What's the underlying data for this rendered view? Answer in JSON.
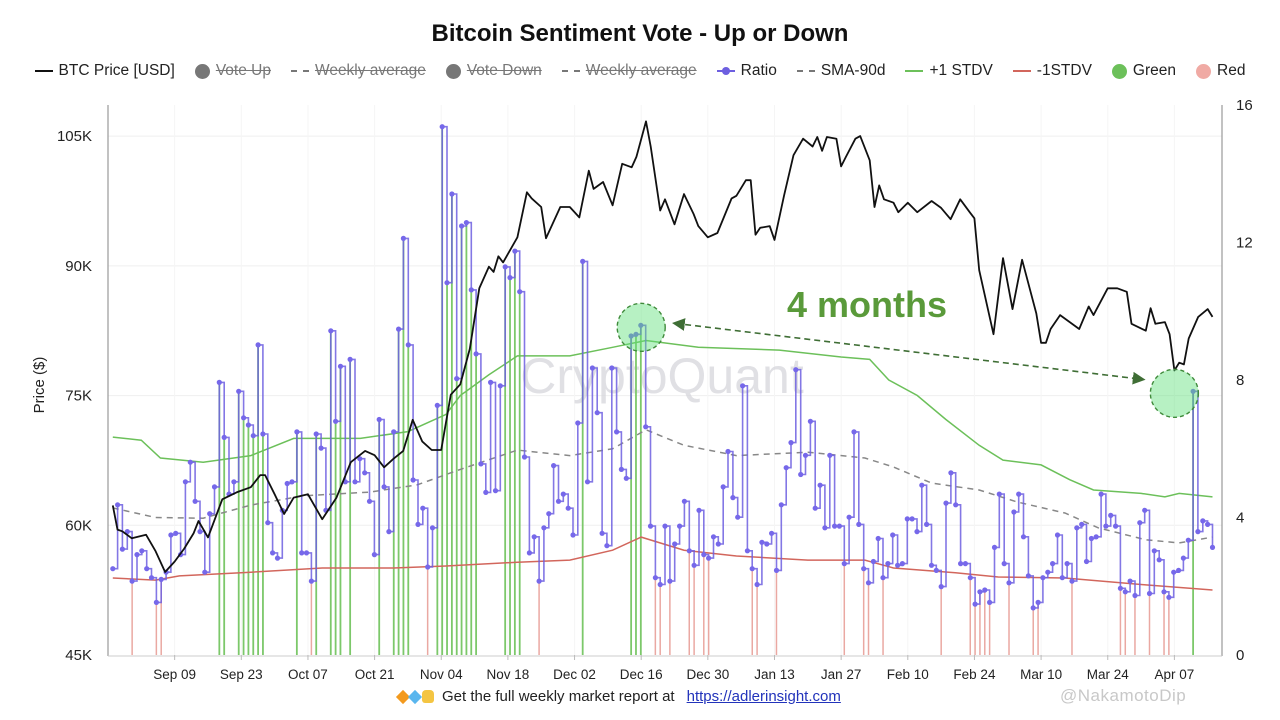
{
  "chart_data": {
    "type": "line",
    "title": "Bitcoin Sentiment Vote - Up or Down",
    "ylabel_left": "Price ($)",
    "ylim_left": [
      45000,
      108600
    ],
    "yticks_left": [
      {
        "value": 45000,
        "label": "45K"
      },
      {
        "value": 60000,
        "label": "60K"
      },
      {
        "value": 75000,
        "label": "75K"
      },
      {
        "value": 90000,
        "label": "90K"
      },
      {
        "value": 105000,
        "label": "105K"
      }
    ],
    "ylim_right": [
      0,
      16
    ],
    "yticks_right": [
      {
        "value": 0,
        "label": "0"
      },
      {
        "value": 4,
        "label": "4"
      },
      {
        "value": 8,
        "label": "8"
      },
      {
        "value": 12,
        "label": "12"
      },
      {
        "value": 16,
        "label": "16"
      }
    ],
    "xlim": [
      "2024-08-26",
      "2025-04-17"
    ],
    "xticks": [
      {
        "date": "2024-09-09",
        "label": "Sep 09"
      },
      {
        "date": "2024-09-23",
        "label": "Sep 23"
      },
      {
        "date": "2024-10-07",
        "label": "Oct 07"
      },
      {
        "date": "2024-10-21",
        "label": "Oct 21"
      },
      {
        "date": "2024-11-04",
        "label": "Nov 04"
      },
      {
        "date": "2024-11-18",
        "label": "Nov 18"
      },
      {
        "date": "2024-12-02",
        "label": "Dec 02"
      },
      {
        "date": "2024-12-16",
        "label": "Dec 16"
      },
      {
        "date": "2024-12-30",
        "label": "Dec 30"
      },
      {
        "date": "2025-01-13",
        "label": "Jan 13"
      },
      {
        "date": "2025-01-27",
        "label": "Jan 27"
      },
      {
        "date": "2025-02-10",
        "label": "Feb 10"
      },
      {
        "date": "2025-02-24",
        "label": "Feb 24"
      },
      {
        "date": "2025-03-10",
        "label": "Mar 10"
      },
      {
        "date": "2025-03-24",
        "label": "Mar 24"
      },
      {
        "date": "2025-04-07",
        "label": "Apr 07"
      }
    ],
    "grid": true,
    "legend_position": "top",
    "legend": [
      {
        "name": "BTC Price [USD]",
        "swatch": "line",
        "color": "#111111",
        "hidden": false
      },
      {
        "name": "Vote Up",
        "swatch": "dot",
        "color": "#777777",
        "hidden": true
      },
      {
        "name": "Weekly average",
        "swatch": "dash",
        "color": "#777777",
        "hidden": true
      },
      {
        "name": "Vote Down",
        "swatch": "dot",
        "color": "#777777",
        "hidden": true
      },
      {
        "name": "Weekly average",
        "swatch": "dash",
        "color": "#777777",
        "hidden": true
      },
      {
        "name": "Ratio",
        "swatch": "ratio",
        "color": "#6d5fe0",
        "hidden": false
      },
      {
        "name": "SMA-90d",
        "swatch": "dash",
        "color": "#777777",
        "hidden": false
      },
      {
        "name": "+1 STDV",
        "swatch": "line",
        "color": "#6cc05a",
        "hidden": false
      },
      {
        "name": "-1STDV",
        "swatch": "line",
        "color": "#d2665c",
        "hidden": false
      },
      {
        "name": "Green",
        "swatch": "dot",
        "color": "#6cc05a",
        "hidden": false
      },
      {
        "name": "Red",
        "swatch": "dot",
        "color": "#f0aaa4",
        "hidden": false
      }
    ],
    "colors": {
      "price": "#111111",
      "ratio": "#6d5fe0",
      "sma": "#888888",
      "plus_stdv": "#6cc05a",
      "minus_stdv": "#d2665c",
      "green_bar": "#7cc86a",
      "red_bar": "#eaa8a2"
    },
    "price": [
      [
        "2024-08-27",
        62300
      ],
      [
        "2024-08-28",
        59500
      ],
      [
        "2024-08-29",
        59300
      ],
      [
        "2024-08-31",
        58500
      ],
      [
        "2024-09-03",
        58900
      ],
      [
        "2024-09-05",
        57000
      ],
      [
        "2024-09-07",
        54600
      ],
      [
        "2024-09-09",
        55800
      ],
      [
        "2024-09-11",
        57300
      ],
      [
        "2024-09-13",
        59100
      ],
      [
        "2024-09-14",
        60500
      ],
      [
        "2024-09-16",
        58600
      ],
      [
        "2024-09-19",
        63000
      ],
      [
        "2024-09-22",
        63800
      ],
      [
        "2024-09-25",
        64400
      ],
      [
        "2024-09-27",
        65800
      ],
      [
        "2024-09-28",
        65800
      ],
      [
        "2024-09-30",
        63600
      ],
      [
        "2024-10-02",
        61300
      ],
      [
        "2024-10-04",
        63200
      ],
      [
        "2024-10-07",
        63600
      ],
      [
        "2024-10-10",
        60700
      ],
      [
        "2024-10-13",
        63200
      ],
      [
        "2024-10-16",
        67300
      ],
      [
        "2024-10-19",
        68600
      ],
      [
        "2024-10-21",
        68100
      ],
      [
        "2024-10-23",
        66700
      ],
      [
        "2024-10-25",
        67700
      ],
      [
        "2024-10-27",
        68600
      ],
      [
        "2024-10-29",
        72200
      ],
      [
        "2024-10-31",
        69700
      ],
      [
        "2024-11-02",
        68700
      ],
      [
        "2024-11-04",
        68700
      ],
      [
        "2024-11-06",
        75100
      ],
      [
        "2024-11-08",
        76300
      ],
      [
        "2024-11-10",
        80400
      ],
      [
        "2024-11-12",
        87400
      ],
      [
        "2024-11-14",
        89900
      ],
      [
        "2024-11-15",
        89300
      ],
      [
        "2024-11-16",
        91100
      ],
      [
        "2024-11-17",
        90400
      ],
      [
        "2024-11-20",
        93300
      ],
      [
        "2024-11-22",
        98500
      ],
      [
        "2024-11-23",
        97800
      ],
      [
        "2024-11-25",
        96800
      ],
      [
        "2024-11-26",
        93200
      ],
      [
        "2024-11-29",
        96800
      ],
      [
        "2024-12-01",
        96800
      ],
      [
        "2024-12-03",
        95600
      ],
      [
        "2024-12-05",
        101000
      ],
      [
        "2024-12-06",
        98900
      ],
      [
        "2024-12-08",
        99700
      ],
      [
        "2024-12-10",
        97000
      ],
      [
        "2024-12-12",
        101800
      ],
      [
        "2024-12-14",
        101400
      ],
      [
        "2024-12-15",
        102600
      ],
      [
        "2024-12-17",
        106700
      ],
      [
        "2024-12-18",
        103800
      ],
      [
        "2024-12-20",
        96400
      ],
      [
        "2024-12-21",
        97700
      ],
      [
        "2024-12-23",
        94800
      ],
      [
        "2024-12-25",
        98300
      ],
      [
        "2024-12-27",
        96000
      ],
      [
        "2024-12-28",
        94600
      ],
      [
        "2024-12-30",
        93300
      ],
      [
        "2025-01-01",
        93800
      ],
      [
        "2025-01-04",
        97800
      ],
      [
        "2025-01-05",
        98100
      ],
      [
        "2025-01-07",
        99900
      ],
      [
        "2025-01-08",
        99900
      ],
      [
        "2025-01-09",
        93600
      ],
      [
        "2025-01-10",
        94400
      ],
      [
        "2025-01-12",
        94600
      ],
      [
        "2025-01-13",
        93000
      ],
      [
        "2025-01-15",
        98100
      ],
      [
        "2025-01-17",
        102800
      ],
      [
        "2025-01-19",
        104700
      ],
      [
        "2025-01-21",
        103800
      ],
      [
        "2025-01-22",
        104900
      ],
      [
        "2025-01-23",
        103300
      ],
      [
        "2025-01-24",
        104900
      ],
      [
        "2025-01-26",
        104700
      ],
      [
        "2025-01-27",
        101500
      ],
      [
        "2025-01-28",
        102600
      ],
      [
        "2025-01-30",
        104700
      ],
      [
        "2025-01-31",
        105000
      ],
      [
        "2025-02-02",
        102200
      ],
      [
        "2025-02-03",
        96800
      ],
      [
        "2025-02-04",
        99300
      ],
      [
        "2025-02-05",
        97700
      ],
      [
        "2025-02-07",
        97300
      ],
      [
        "2025-02-08",
        96200
      ],
      [
        "2025-02-10",
        97300
      ],
      [
        "2025-02-12",
        96200
      ],
      [
        "2025-02-15",
        97500
      ],
      [
        "2025-02-17",
        96700
      ],
      [
        "2025-02-19",
        95400
      ],
      [
        "2025-02-21",
        97700
      ],
      [
        "2025-02-23",
        96200
      ],
      [
        "2025-02-24",
        95500
      ],
      [
        "2025-02-25",
        89500
      ],
      [
        "2025-02-28",
        82100
      ],
      [
        "2025-03-02",
        90900
      ],
      [
        "2025-03-04",
        85000
      ],
      [
        "2025-03-06",
        90700
      ],
      [
        "2025-03-09",
        84500
      ],
      [
        "2025-03-10",
        81100
      ],
      [
        "2025-03-11",
        81100
      ],
      [
        "2025-03-12",
        82700
      ],
      [
        "2025-03-14",
        84300
      ],
      [
        "2025-03-18",
        82700
      ],
      [
        "2025-03-20",
        85300
      ],
      [
        "2025-03-21",
        84300
      ],
      [
        "2025-03-24",
        87400
      ],
      [
        "2025-03-26",
        87400
      ],
      [
        "2025-03-28",
        87000
      ],
      [
        "2025-03-29",
        83300
      ],
      [
        "2025-04-01",
        82500
      ],
      [
        "2025-04-02",
        85100
      ],
      [
        "2025-04-03",
        83300
      ],
      [
        "2025-04-05",
        83500
      ],
      [
        "2025-04-06",
        82100
      ],
      [
        "2025-04-07",
        77900
      ],
      [
        "2025-04-08",
        78800
      ],
      [
        "2025-04-09",
        78600
      ],
      [
        "2025-04-10",
        81600
      ],
      [
        "2025-04-12",
        84100
      ],
      [
        "2025-04-14",
        85000
      ],
      [
        "2025-04-15",
        84100
      ]
    ],
    "ratio": {
      "dates": [
        "2024-08-27",
        "2025-04-15"
      ],
      "values": [
        2.51,
        4.37,
        3.08,
        3.59,
        2.15,
        2.92,
        3.03,
        2.51,
        2.25,
        1.53,
        2.2,
        2.41,
        3.49,
        3.54,
        2.92,
        5.04,
        5.61,
        4.47,
        3.59,
        2.41,
        4.11,
        4.89,
        7.93,
        6.33,
        4.68,
        5.04,
        7.67,
        6.9,
        6.69,
        6.38,
        9.02,
        6.43,
        3.85,
        2.97,
        2.82,
        4.21,
        4.99,
        5.04,
        6.49,
        2.97,
        2.97,
        2.15,
        6.43,
        6.02,
        4.21,
        9.43,
        6.8,
        8.4,
        5.04,
        8.6,
        5.04,
        5.71,
        5.3,
        4.47,
        2.92,
        6.85,
        4.89,
        3.59,
        6.49,
        9.48,
        12.12,
        9.02,
        5.09,
        3.8,
        4.27,
        2.56,
        3.7,
        7.26,
        15.37,
        10.83,
        13.41,
        8.04,
        12.48,
        12.58,
        10.62,
        8.76,
        5.56,
        4.73,
        7.93,
        4.78,
        7.83,
        11.29,
        10.98,
        11.75,
        10.57,
        5.76,
        2.97,
        3.44,
        2.15,
        3.7,
        4.11,
        5.51,
        4.47,
        4.68,
        4.27,
        3.49,
        6.75,
        11.45,
        5.04,
        8.35,
        7.05,
        3.54,
        3.18,
        8.35,
        6.49,
        5.4,
        5.14,
        9.28,
        9.33,
        9.59,
        6.64,
        3.75,
        2.25,
        2.05,
        3.75,
        2.15,
        3.23,
        3.75,
        4.47,
        3.03,
        2.61,
        4.21,
        2.92,
        2.82,
        3.44,
        3.23,
        4.89,
        5.92,
        4.58,
        4.01,
        7.83,
        3.03,
        2.51,
        2.05,
        3.28,
        3.23,
        3.54,
        2.46,
        4.37,
        5.45,
        6.18,
        8.3,
        5.25,
        5.81,
        6.8,
        4.27,
        4.94,
        3.7,
        5.81,
        3.75,
        3.75,
        2.66,
        4.01,
        6.49,
        3.8,
        2.51,
        2.1,
        2.72,
        3.39,
        2.25,
        2.66,
        3.49,
        2.61,
        2.66,
        3.96,
        3.96,
        3.59,
        4.94,
        3.8,
        2.61,
        2.46,
        1.99,
        4.42,
        5.3,
        4.37,
        2.66,
        2.66,
        2.25,
        1.48,
        1.84,
        1.89,
        1.53,
        3.13,
        4.68,
        2.66,
        2.1,
        4.16,
        4.68,
        3.44,
        2.3,
        1.37,
        1.53,
        2.25,
        2.41,
        2.66,
        3.49,
        2.25,
        2.66,
        2.15,
        3.7,
        3.8,
        2.72,
        3.39,
        3.44,
        4.68,
        3.75,
        4.06,
        3.75,
        1.94,
        1.84,
        2.15,
        1.73,
        3.85,
        4.21,
        1.79,
        3.03,
        2.77,
        1.84,
        1.68,
        2.41,
        2.46,
        2.82,
        3.34,
        7.67,
        3.59,
        3.9,
        3.8,
        3.13
      ]
    },
    "sma_90d": [
      [
        "2024-08-27",
        4.28
      ],
      [
        "2024-09-05",
        4.0
      ],
      [
        "2024-09-15",
        3.98
      ],
      [
        "2024-09-25",
        4.36
      ],
      [
        "2024-10-06",
        4.63
      ],
      [
        "2024-10-20",
        4.74
      ],
      [
        "2024-10-30",
        4.95
      ],
      [
        "2024-11-08",
        5.4
      ],
      [
        "2024-11-20",
        5.96
      ],
      [
        "2024-12-01",
        5.8
      ],
      [
        "2024-12-10",
        6.0
      ],
      [
        "2024-12-17",
        6.55
      ],
      [
        "2024-12-25",
        6.1
      ],
      [
        "2025-01-05",
        5.8
      ],
      [
        "2025-01-20",
        5.9
      ],
      [
        "2025-02-01",
        5.73
      ],
      [
        "2025-02-07",
        5.47
      ],
      [
        "2025-02-15",
        5.0
      ],
      [
        "2025-02-25",
        4.8
      ],
      [
        "2025-03-05",
        4.45
      ],
      [
        "2025-03-15",
        4.13
      ],
      [
        "2025-03-22",
        3.7
      ],
      [
        "2025-04-01",
        3.35
      ],
      [
        "2025-04-08",
        3.26
      ],
      [
        "2025-04-15",
        3.43
      ]
    ],
    "plus_1_stdv": [
      [
        "2024-08-27",
        6.34
      ],
      [
        "2024-09-02",
        6.25
      ],
      [
        "2024-09-06",
        5.73
      ],
      [
        "2024-09-15",
        5.61
      ],
      [
        "2024-09-25",
        5.8
      ],
      [
        "2024-10-04",
        6.3
      ],
      [
        "2024-10-18",
        6.3
      ],
      [
        "2024-10-28",
        6.5
      ],
      [
        "2024-11-05",
        7.0
      ],
      [
        "2024-11-08",
        7.55
      ],
      [
        "2024-11-14",
        8.15
      ],
      [
        "2024-11-20",
        8.7
      ],
      [
        "2024-12-01",
        8.7
      ],
      [
        "2024-12-10",
        8.95
      ],
      [
        "2024-12-17",
        9.15
      ],
      [
        "2024-12-28",
        8.95
      ],
      [
        "2025-01-14",
        8.87
      ],
      [
        "2025-01-27",
        8.67
      ],
      [
        "2025-02-02",
        8.6
      ],
      [
        "2025-02-06",
        8.0
      ],
      [
        "2025-02-12",
        7.55
      ],
      [
        "2025-02-18",
        6.85
      ],
      [
        "2025-02-25",
        6.1
      ],
      [
        "2025-03-02",
        5.67
      ],
      [
        "2025-03-10",
        5.53
      ],
      [
        "2025-03-16",
        5.1
      ],
      [
        "2025-03-21",
        4.8
      ],
      [
        "2025-03-31",
        4.7
      ],
      [
        "2025-04-05",
        4.6
      ],
      [
        "2025-04-08",
        4.7
      ],
      [
        "2025-04-15",
        4.6
      ]
    ],
    "minus_1_stdv": [
      [
        "2024-08-27",
        2.24
      ],
      [
        "2024-09-05",
        2.18
      ],
      [
        "2024-09-10",
        2.3
      ],
      [
        "2024-09-25",
        2.41
      ],
      [
        "2024-10-10",
        2.53
      ],
      [
        "2024-10-25",
        2.53
      ],
      [
        "2024-11-05",
        2.59
      ],
      [
        "2024-11-20",
        2.7
      ],
      [
        "2024-12-01",
        2.76
      ],
      [
        "2024-12-10",
        3.05
      ],
      [
        "2024-12-16",
        3.43
      ],
      [
        "2024-12-25",
        3.05
      ],
      [
        "2025-01-05",
        2.88
      ],
      [
        "2025-01-20",
        2.76
      ],
      [
        "2025-02-01",
        2.76
      ],
      [
        "2025-02-07",
        2.53
      ],
      [
        "2025-02-20",
        2.39
      ],
      [
        "2025-03-01",
        2.27
      ],
      [
        "2025-03-15",
        2.24
      ],
      [
        "2025-04-01",
        2.04
      ],
      [
        "2025-04-15",
        1.89
      ]
    ],
    "annotations": {
      "text": "4 months",
      "color": "#5a9a3a",
      "highlight_1": {
        "date": "2024-12-16",
        "value": 9.59
      },
      "highlight_2": {
        "date": "2025-04-07",
        "value": 7.67
      }
    },
    "watermark": "CryptoQuant"
  },
  "footer": {
    "icons": [
      "orange-diamond-icon",
      "blue-diamond-icon",
      "raised-hands-icon"
    ],
    "text": "Get the full weekly market report at",
    "link": "https://adlerinsight.com"
  },
  "corner_watermark": "@NakamotoDip"
}
